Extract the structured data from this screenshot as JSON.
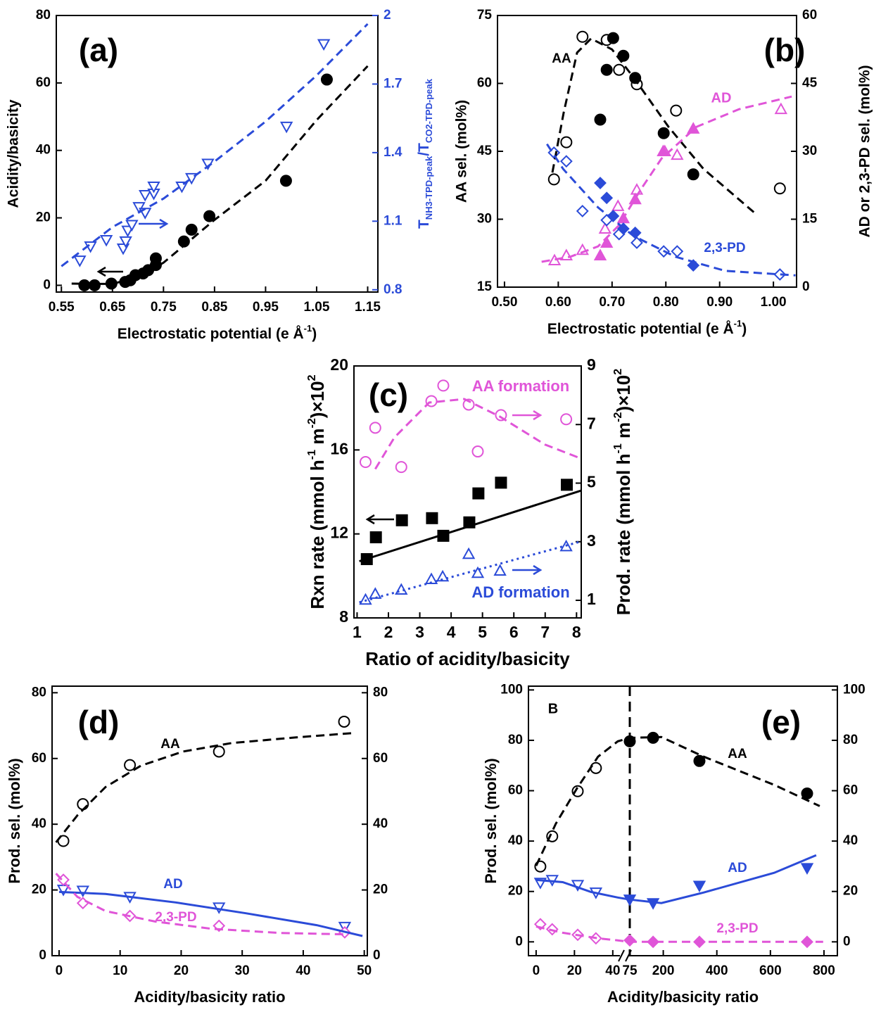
{
  "chart_data": [
    {
      "type": "scatter",
      "xlabel": [
        "Electrostatic potential (e Å",
        "-1",
        ")"
      ],
      "xlabel_script": "sup",
      "ylabel": "Acidity/basicity",
      "y2label": [
        "T",
        "NH3-TPD-peak",
        "/T",
        "CO2-TPD-peak"
      ],
      "y2label_script": "sub",
      "y2color": "#2b4bd8",
      "xlim": [
        0.54,
        1.17
      ],
      "xticks": [
        0.55,
        0.65,
        0.75,
        0.85,
        0.95,
        1.05,
        1.15
      ],
      "ylim": [
        -2,
        80
      ],
      "yticks": [
        0,
        20,
        40,
        60,
        80
      ],
      "y2lim": [
        0.79,
        2.0
      ],
      "y2ticks": [
        0.8,
        1.1,
        1.4,
        1.7,
        2.0
      ],
      "annotations": [
        "(a)"
      ],
      "series": [
        {
          "mode": "markers",
          "marker": "circle",
          "filled": true,
          "color": "#000000",
          "x": [
            0.595,
            0.615,
            0.648,
            0.675,
            0.685,
            0.695,
            0.71,
            0.72,
            0.735,
            0.735,
            0.79,
            0.805,
            0.84,
            0.99,
            1.07
          ],
          "values": [
            0,
            0,
            0.5,
            1,
            1.5,
            3,
            3.5,
            4.5,
            6,
            8,
            13,
            16.5,
            20.5,
            31,
            61
          ]
        },
        {
          "mode": "markers",
          "marker": "tri-down",
          "filled": false,
          "color": "#2b4bd8",
          "axis": "y2",
          "x": [
            0.586,
            0.607,
            0.638,
            0.671,
            0.676,
            0.68,
            0.688,
            0.702,
            0.714,
            0.714,
            0.731,
            0.731,
            0.786,
            0.805,
            0.837,
            0.991,
            1.064
          ],
          "values": [
            0.928,
            0.99,
            1.018,
            0.981,
            1.012,
            1.059,
            1.084,
            1.162,
            1.137,
            1.215,
            1.221,
            1.252,
            1.252,
            1.289,
            1.352,
            1.514,
            1.875
          ]
        },
        {
          "mode": "lines",
          "dash": "dashed",
          "color": "#000000",
          "x": [
            0.57,
            0.65,
            0.7,
            0.75,
            0.85,
            0.95,
            1.05,
            1.15
          ],
          "values": [
            0.5,
            0.4,
            2.5,
            6.7,
            19.4,
            31,
            49,
            65
          ]
        },
        {
          "mode": "lines",
          "dash": "dashed",
          "color": "#2b4bd8",
          "axis": "y2",
          "x": [
            0.55,
            0.65,
            0.75,
            0.85,
            0.95,
            1.05,
            1.15
          ],
          "values": [
            0.903,
            1.074,
            1.199,
            1.361,
            1.536,
            1.738,
            1.963
          ]
        }
      ]
    },
    {
      "type": "scatter",
      "xlabel": [
        "Electrostatic potential (e Å",
        "-1",
        ")"
      ],
      "xlabel_script": "sup",
      "ylabel": "AA sel. (mol%)",
      "y2label": "AD or 2,3-PD sel. (mol%)",
      "xlim": [
        0.487,
        1.043
      ],
      "xticks": [
        {
          "value": 0.5,
          "label": "0.50"
        },
        {
          "value": 0.6,
          "label": "0.60"
        },
        {
          "value": 0.7,
          "label": "0.70"
        },
        {
          "value": 0.8,
          "label": "0.80"
        },
        {
          "value": 0.9,
          "label": "0.90"
        },
        {
          "value": 1.0,
          "label": "1.00"
        }
      ],
      "ylim": [
        15,
        75
      ],
      "yticks": [
        15,
        30,
        45,
        60,
        75
      ],
      "y2lim": [
        0,
        60
      ],
      "y2ticks": [
        0,
        15,
        30,
        45,
        60
      ],
      "annotations": [
        "(b)",
        "AA",
        "AD",
        "2,3-PD"
      ],
      "series": [
        {
          "mode": "markers",
          "marker": "circle",
          "filled": false,
          "color": "#000000",
          "x": [
            0.592,
            0.615,
            0.645,
            0.69,
            0.713,
            0.746,
            0.819,
            1.012
          ],
          "values": [
            38.8,
            47.0,
            70.3,
            69.6,
            63.0,
            59.8,
            54.0,
            36.8
          ]
        },
        {
          "mode": "markers",
          "marker": "circle",
          "filled": true,
          "color": "#000000",
          "x": [
            0.678,
            0.69,
            0.702,
            0.721,
            0.743,
            0.796,
            0.851
          ],
          "values": [
            52.0,
            63.0,
            70.0,
            66.1,
            61.2,
            49.0,
            39.9
          ]
        },
        {
          "mode": "markers",
          "marker": "tri-up",
          "filled": false,
          "color": "#e055d8",
          "axis": "y2",
          "x": [
            0.593,
            0.615,
            0.645,
            0.687,
            0.711,
            0.746,
            0.798,
            0.821,
            1.014
          ],
          "values": [
            5.9,
            7.0,
            8.2,
            12.9,
            17.9,
            21.5,
            30.0,
            29.2,
            39.3
          ]
        },
        {
          "mode": "markers",
          "marker": "tri-up",
          "filled": true,
          "color": "#e055d8",
          "axis": "y2",
          "x": [
            0.678,
            0.69,
            0.721,
            0.743,
            0.795,
            0.851
          ],
          "values": [
            7.0,
            9.8,
            15.2,
            19.4,
            30.0,
            35.0
          ]
        },
        {
          "mode": "markers",
          "marker": "diamond",
          "filled": false,
          "color": "#2b4bd8",
          "axis": "y2",
          "x": [
            0.592,
            0.615,
            0.645,
            0.69,
            0.713,
            0.746,
            0.796,
            0.821,
            1.012
          ],
          "values": [
            29.7,
            27.8,
            16.8,
            14.8,
            11.7,
            9.8,
            7.9,
            7.9,
            2.8
          ]
        },
        {
          "mode": "markers",
          "marker": "diamond",
          "filled": true,
          "color": "#2b4bd8",
          "axis": "y2",
          "x": [
            0.678,
            0.69,
            0.702,
            0.721,
            0.743,
            0.851
          ],
          "values": [
            23.0,
            19.7,
            15.7,
            12.9,
            12.0,
            4.8
          ]
        },
        {
          "mode": "lines",
          "dash": "dashed",
          "color": "#000000",
          "x": [
            0.589,
            0.61,
            0.635,
            0.661,
            0.7,
            0.74,
            0.805,
            0.87,
            0.969
          ],
          "values": [
            40.3,
            53.5,
            66.8,
            69.9,
            67.5,
            61.3,
            50.4,
            41.1,
            31.0
          ]
        },
        {
          "mode": "lines",
          "dash": "dashed",
          "color": "#e055d8",
          "axis": "y2",
          "x": [
            0.569,
            0.622,
            0.674,
            0.713,
            0.753,
            0.792,
            0.857,
            0.936,
            1.034
          ],
          "values": [
            5.6,
            6.7,
            9.0,
            13.7,
            21.5,
            28.4,
            35.4,
            39.3,
            42.1
          ]
        },
        {
          "mode": "lines",
          "dash": "dashed",
          "color": "#2b4bd8",
          "axis": "y2",
          "x": [
            0.579,
            0.609,
            0.674,
            0.74,
            0.818,
            0.91,
            1.041
          ],
          "values": [
            31.6,
            26.1,
            17.6,
            11.3,
            6.7,
            3.6,
            2.6
          ]
        }
      ]
    },
    {
      "type": "scatter",
      "xlabel": "Ratio of acidity/basicity",
      "ylabel": [
        "Rxn rate (mmol h",
        "-1",
        " m",
        "-2",
        ")×10",
        "2"
      ],
      "ylabel_script": "sup",
      "y2label": [
        "Prod. rate (mmol h",
        "-1",
        " m",
        "-2",
        ")×10",
        "2"
      ],
      "y2label_script": "sup",
      "xlim": [
        0.9,
        8.15
      ],
      "xticks": [
        1,
        2,
        3,
        4,
        5,
        6,
        7,
        8
      ],
      "ylim": [
        8,
        20
      ],
      "yticks": [
        8,
        12,
        16,
        20
      ],
      "y2lim": [
        0.4,
        9
      ],
      "y2ticks": [
        1,
        3,
        5,
        7,
        9
      ],
      "annotations": [
        "(c)",
        "AA formation",
        "AD formation"
      ],
      "series": [
        {
          "mode": "markers",
          "marker": "square",
          "filled": true,
          "color": "#000000",
          "x": [
            1.31,
            1.6,
            2.43,
            3.39,
            3.75,
            4.58,
            4.87,
            5.59,
            7.69
          ],
          "values": [
            10.8,
            11.84,
            12.65,
            12.75,
            11.91,
            12.55,
            13.93,
            14.44,
            14.34
          ]
        },
        {
          "mode": "markers",
          "marker": "circle",
          "filled": false,
          "color": "#e055d8",
          "axis": "y2",
          "x": [
            1.27,
            1.58,
            2.41,
            3.37,
            3.75,
            4.56,
            4.85,
            5.59,
            7.67
          ],
          "values": [
            5.72,
            6.89,
            5.55,
            7.8,
            8.33,
            7.68,
            6.08,
            7.32,
            7.18
          ]
        },
        {
          "mode": "markers",
          "marker": "tri-up",
          "filled": false,
          "color": "#2b4bd8",
          "axis": "y2",
          "x": [
            1.27,
            1.58,
            2.41,
            3.37,
            3.73,
            4.56,
            4.85,
            5.56,
            7.67
          ],
          "values": [
            1.02,
            1.22,
            1.36,
            1.72,
            1.81,
            2.58,
            1.93,
            2.01,
            2.84
          ]
        },
        {
          "mode": "lines",
          "dash": "solid",
          "color": "#000000",
          "x": [
            1.07,
            8.14
          ],
          "values": [
            10.7,
            14.06
          ]
        },
        {
          "mode": "lines",
          "dash": "dashed",
          "color": "#e055d8",
          "axis": "y2",
          "x": [
            1.58,
            2.19,
            3.3,
            4.42,
            5.54,
            6.99,
            8.14
          ],
          "values": [
            5.48,
            6.56,
            7.75,
            7.87,
            7.28,
            6.32,
            5.84
          ]
        },
        {
          "mode": "lines",
          "dash": "dotted",
          "color": "#2b4bd8",
          "axis": "y2",
          "x": [
            1.07,
            8.14
          ],
          "values": [
            0.93,
            3.01
          ]
        }
      ]
    },
    {
      "type": "scatter",
      "xlabel": "Acidity/basicity ratio",
      "ylabel": "Prod. sel. (mol%)",
      "xlim": [
        -1.15,
        50.5
      ],
      "xticks": [
        0,
        10,
        20,
        30,
        40,
        50
      ],
      "ylim": [
        0,
        82
      ],
      "yticks": [
        0,
        20,
        40,
        60,
        80
      ],
      "y2lim": [
        0,
        82
      ],
      "y2ticks": [
        0,
        20,
        40,
        60,
        80
      ],
      "annotations": [
        "(d)",
        "AA",
        "AD",
        "2,3-PD"
      ],
      "series": [
        {
          "mode": "markers",
          "marker": "circle",
          "filled": false,
          "color": "#000000",
          "x": [
            0.7,
            3.9,
            11.6,
            26.2,
            46.7
          ],
          "values": [
            34.9,
            46.1,
            58.0,
            62.1,
            71.2
          ]
        },
        {
          "mode": "markers",
          "marker": "tri-down",
          "filled": false,
          "color": "#2b4bd8",
          "x": [
            0.7,
            3.9,
            11.6,
            26.2,
            46.8
          ],
          "values": [
            20.1,
            19.8,
            17.9,
            14.7,
            8.8
          ]
        },
        {
          "mode": "markers",
          "marker": "diamond",
          "filled": false,
          "color": "#e055d8",
          "x": [
            0.7,
            3.9,
            11.6,
            26.2,
            46.8
          ],
          "values": [
            23.1,
            16.0,
            12.1,
            9.1,
            7.1
          ]
        },
        {
          "mode": "lines",
          "dash": "dashed",
          "color": "#000000",
          "x": [
            -0.5,
            3.0,
            7.6,
            13.4,
            20.3,
            28.3,
            38.7,
            47.9
          ],
          "values": [
            34.5,
            42.7,
            51.3,
            57.8,
            62.1,
            64.7,
            66.4,
            67.7
          ]
        },
        {
          "mode": "lines",
          "dash": "solid",
          "color": "#2b4bd8",
          "x": [
            0,
            7.6,
            19.1,
            30.6,
            42.2,
            49.7
          ],
          "values": [
            19.4,
            18.8,
            16.2,
            12.9,
            9.3,
            6.0
          ]
        },
        {
          "mode": "lines",
          "dash": "dashed",
          "color": "#e055d8",
          "x": [
            -0.5,
            3.0,
            7.6,
            15.7,
            24.9,
            36.4,
            46.8
          ],
          "values": [
            25.0,
            17.9,
            13.6,
            10.4,
            8.2,
            6.9,
            6.5
          ]
        }
      ]
    },
    {
      "type": "scatter",
      "xlabel": "Acidity/basicity ratio",
      "ylabel": "Prod. sel. (mol%)",
      "xlim": [
        -4,
        850
      ],
      "xbreak": [
        43,
        75
      ],
      "xticks": [
        0,
        20,
        40,
        75,
        200,
        400,
        600,
        800
      ],
      "ylim": [
        -5.5,
        101.5
      ],
      "yticks": [
        0,
        20,
        40,
        60,
        80,
        100
      ],
      "y2lim": [
        -5.5,
        101.5
      ],
      "y2ticks": [
        0,
        20,
        40,
        60,
        80,
        100
      ],
      "annotations": [
        "B",
        "(e)",
        "AA",
        "AD",
        "2,3-PD"
      ],
      "series": [
        {
          "mode": "markers",
          "marker": "circle",
          "filled": false,
          "color": "#000000",
          "x": [
            2.2,
            8.4,
            21.7,
            31.2
          ],
          "values": [
            29.9,
            41.9,
            59.8,
            69.0
          ]
        },
        {
          "mode": "markers",
          "marker": "circle",
          "filled": true,
          "color": "#000000",
          "x": [
            75,
            162,
            335,
            737
          ],
          "values": [
            79.6,
            81.0,
            71.8,
            58.9
          ]
        },
        {
          "mode": "markers",
          "marker": "tri-down",
          "filled": false,
          "color": "#2b4bd8",
          "x": [
            2.2,
            8.4,
            21.7,
            31.2
          ],
          "values": [
            23.5,
            24.6,
            22.6,
            19.6
          ]
        },
        {
          "mode": "markers",
          "marker": "tri-down",
          "filled": true,
          "color": "#2b4bd8",
          "x": [
            75,
            162,
            335,
            737
          ],
          "values": [
            16.8,
            15.4,
            22.3,
            29.3
          ]
        },
        {
          "mode": "markers",
          "marker": "diamond",
          "filled": false,
          "color": "#e055d8",
          "x": [
            2.2,
            8.4,
            21.7,
            31.2
          ],
          "values": [
            7.0,
            5.0,
            2.8,
            1.4
          ]
        },
        {
          "mode": "markers",
          "marker": "diamond",
          "filled": true,
          "color": "#e055d8",
          "x": [
            75,
            162,
            335,
            737
          ],
          "values": [
            0.6,
            0,
            0,
            0
          ]
        },
        {
          "mode": "lines",
          "dash": "dashed",
          "color": "#000000",
          "x": [
            0,
            10.3,
            21.3,
            32.3,
            42.6,
            75,
            193,
            351,
            614,
            784
          ],
          "values": [
            30.2,
            46.9,
            60.9,
            73.5,
            79.6,
            81,
            81.3,
            73.5,
            62.3,
            53.9
          ]
        },
        {
          "mode": "lines",
          "dash": "solid",
          "color": "#2b4bd8",
          "x": [
            0,
            13.9,
            28.6,
            42.6,
            75,
            193,
            351,
            614,
            771
          ],
          "values": [
            24.6,
            23.7,
            19.8,
            17.6,
            16.8,
            15.4,
            19.6,
            27.4,
            34.4
          ]
        },
        {
          "mode": "lines",
          "dash": "dashed",
          "color": "#e055d8",
          "x": [
            0,
            13.9,
            32.3,
            42.6,
            75,
            797
          ],
          "values": [
            6.1,
            3.6,
            1.4,
            0.6,
            0,
            0
          ]
        }
      ]
    }
  ]
}
